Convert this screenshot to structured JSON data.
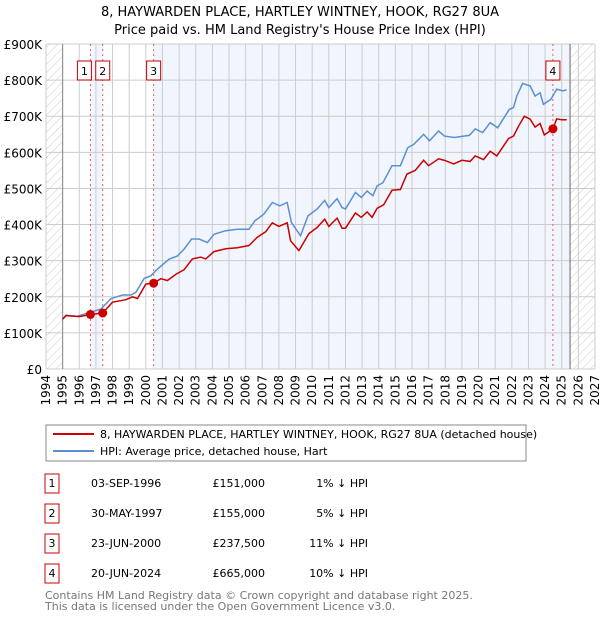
{
  "chart_data": {
    "type": "line",
    "title": "8, HAYWARDEN PLACE, HARTLEY WINTNEY, HOOK, RG27 8UA",
    "subtitle": "Price paid vs. HM Land Registry's House Price Index (HPI)",
    "xlim": [
      1994,
      2027
    ],
    "ylim": [
      0,
      900000
    ],
    "x_ticks": [
      "1994",
      "1995",
      "1996",
      "1997",
      "1998",
      "1999",
      "2000",
      "2001",
      "2002",
      "2003",
      "2004",
      "2005",
      "2006",
      "2007",
      "2008",
      "2009",
      "2010",
      "2011",
      "2012",
      "2013",
      "2014",
      "2015",
      "2016",
      "2017",
      "2018",
      "2019",
      "2020",
      "2021",
      "2022",
      "2023",
      "2024",
      "2025",
      "2026",
      "2027"
    ],
    "y_ticks": [
      {
        "value": 0,
        "label": "£0"
      },
      {
        "value": 100000,
        "label": "£100K"
      },
      {
        "value": 200000,
        "label": "£200K"
      },
      {
        "value": 300000,
        "label": "£300K"
      },
      {
        "value": 400000,
        "label": "£400K"
      },
      {
        "value": 500000,
        "label": "£500K"
      },
      {
        "value": 600000,
        "label": "£600K"
      },
      {
        "value": 700000,
        "label": "£700K"
      },
      {
        "value": 800000,
        "label": "£800K"
      },
      {
        "value": 900000,
        "label": "£900K"
      }
    ],
    "grid": true,
    "data_end": 2025.5,
    "series": [
      {
        "name": "8, HAYWARDEN PLACE, HARTLEY WINTNEY, HOOK, RG27 8UA (detached house)",
        "color": "#cc0000",
        "x": [
          1995.0,
          1995.2,
          1996.0,
          1996.67,
          1997.41,
          1998.0,
          1998.8,
          1999.2,
          1999.5,
          2000.0,
          2000.47,
          2000.9,
          2001.3,
          2001.8,
          2002.3,
          2002.8,
          2003.3,
          2003.6,
          2004.1,
          2004.8,
          2005.5,
          2006.2,
          2006.7,
          2007.2,
          2007.6,
          2008.0,
          2008.5,
          2008.7,
          2009.2,
          2009.8,
          2010.3,
          2010.75,
          2011.0,
          2011.5,
          2011.8,
          2012.0,
          2012.6,
          2012.95,
          2013.3,
          2013.6,
          2013.9,
          2014.3,
          2014.8,
          2015.3,
          2015.7,
          2016.2,
          2016.7,
          2017.0,
          2017.6,
          2018.0,
          2018.5,
          2019.0,
          2019.5,
          2019.8,
          2020.3,
          2020.7,
          2021.1,
          2021.8,
          2022.1,
          2022.4,
          2022.75,
          2023.1,
          2023.4,
          2023.7,
          2023.95,
          2024.47,
          2024.7,
          2025.0,
          2025.3
        ],
        "y": [
          138,
          148,
          145,
          151,
          155,
          185,
          192,
          200,
          195,
          235,
          237.5,
          250,
          245,
          262,
          275,
          305,
          310,
          305,
          325,
          333,
          336,
          342,
          365,
          380,
          405,
          395,
          405,
          355,
          328,
          375,
          392,
          415,
          395,
          418,
          390,
          390,
          432,
          420,
          435,
          420,
          445,
          455,
          495,
          497,
          540,
          550,
          578,
          563,
          582,
          577,
          568,
          578,
          575,
          590,
          580,
          603,
          590,
          638,
          645,
          672,
          700,
          692,
          670,
          680,
          648,
          665,
          693,
          690,
          690
        ],
        "y_unit": "thousand GBP"
      },
      {
        "name": "HPI: Average price, detached house, Hart",
        "color": "#5b8fd4",
        "x": [
          1995.0,
          1995.2,
          1995.85,
          1996.65,
          1997.3,
          1997.9,
          1998.6,
          1999.1,
          1999.4,
          1999.9,
          2000.3,
          2000.7,
          2001.4,
          2001.9,
          2002.3,
          2002.75,
          2003.2,
          2003.7,
          2004.1,
          2004.8,
          2005.5,
          2006.2,
          2006.55,
          2007.1,
          2007.6,
          2008.05,
          2008.5,
          2008.75,
          2009.3,
          2009.75,
          2010.3,
          2010.75,
          2011.0,
          2011.5,
          2011.8,
          2012.0,
          2012.6,
          2012.95,
          2013.3,
          2013.65,
          2013.9,
          2014.25,
          2014.8,
          2015.3,
          2015.75,
          2016.1,
          2016.7,
          2017.05,
          2017.6,
          2017.95,
          2018.55,
          2019.1,
          2019.45,
          2019.8,
          2020.25,
          2020.7,
          2021.15,
          2021.85,
          2022.1,
          2022.3,
          2022.65,
          2023.1,
          2023.4,
          2023.7,
          2023.9,
          2024.35,
          2024.7,
          2025.05,
          2025.3
        ],
        "y": [
          138,
          149,
          146,
          157,
          166,
          195,
          205,
          205,
          212,
          251,
          258,
          277,
          304,
          313,
          332,
          360,
          360,
          350,
          373,
          383,
          387,
          387,
          410,
          429,
          461,
          452,
          461,
          406,
          369,
          424,
          443,
          467,
          447,
          472,
          447,
          443,
          489,
          475,
          493,
          480,
          507,
          516,
          563,
          563,
          613,
          622,
          650,
          632,
          659,
          645,
          641,
          645,
          647,
          665,
          655,
          682,
          668,
          719,
          724,
          756,
          791,
          784,
          756,
          765,
          733,
          747,
          775,
          770,
          773
        ],
        "y_unit": "thousand GBP"
      }
    ],
    "sales": [
      {
        "num": "1",
        "year": 1996.67,
        "value": 151,
        "date": "03-SEP-1996",
        "price": "£151,000",
        "pct": "1% ↓ HPI"
      },
      {
        "num": "2",
        "year": 1997.41,
        "value": 155,
        "date": "30-MAY-1997",
        "price": "£155,000",
        "pct": "5% ↓ HPI"
      },
      {
        "num": "3",
        "year": 2000.47,
        "value": 237.5,
        "date": "23-JUN-2000",
        "price": "£237,500",
        "pct": "11% ↓ HPI"
      },
      {
        "num": "4",
        "year": 2024.47,
        "value": 665,
        "date": "20-JUN-2024",
        "price": "£665,000",
        "pct": "10% ↓ HPI"
      }
    ],
    "legend_placement": "below"
  },
  "legend": {
    "property": "8, HAYWARDEN PLACE, HARTLEY WINTNEY, HOOK, RG27 8UA (detached house)",
    "hpi": "HPI: Average price, detached house, Hart"
  },
  "footer": {
    "line1": "Contains HM Land Registry data © Crown copyright and database right 2025.",
    "line2": "This data is licensed under the Open Government Licence v3.0."
  }
}
